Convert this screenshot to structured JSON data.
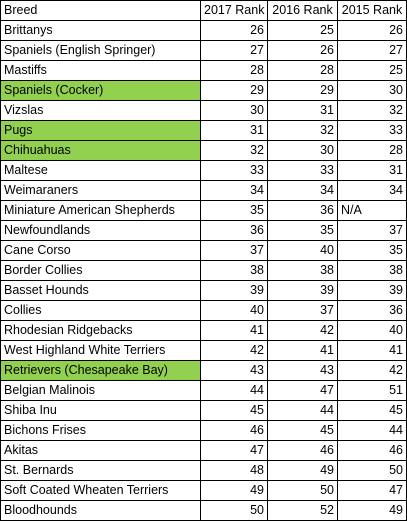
{
  "table": {
    "headers": [
      "Breed",
      "2017 Rank",
      "2016 Rank",
      "2015 Rank"
    ],
    "highlight_color": "#92d050",
    "rows": [
      {
        "breed": "Brittanys",
        "r2017": "26",
        "r2016": "25",
        "r2015": "26",
        "highlight": false
      },
      {
        "breed": "Spaniels (English Springer)",
        "r2017": "27",
        "r2016": "26",
        "r2015": "27",
        "highlight": false
      },
      {
        "breed": "Mastiffs",
        "r2017": "28",
        "r2016": "28",
        "r2015": "25",
        "highlight": false
      },
      {
        "breed": "Spaniels (Cocker)",
        "r2017": "29",
        "r2016": "29",
        "r2015": "30",
        "highlight": true
      },
      {
        "breed": "Vizslas",
        "r2017": "30",
        "r2016": "31",
        "r2015": "32",
        "highlight": false
      },
      {
        "breed": "Pugs",
        "r2017": "31",
        "r2016": "32",
        "r2015": "33",
        "highlight": true
      },
      {
        "breed": "Chihuahuas",
        "r2017": "32",
        "r2016": "30",
        "r2015": "28",
        "highlight": true
      },
      {
        "breed": "Maltese",
        "r2017": "33",
        "r2016": "33",
        "r2015": "31",
        "highlight": false
      },
      {
        "breed": "Weimaraners",
        "r2017": "34",
        "r2016": "34",
        "r2015": "34",
        "highlight": false
      },
      {
        "breed": "Miniature American Shepherds",
        "r2017": "35",
        "r2016": "36",
        "r2015": "N/A",
        "highlight": false
      },
      {
        "breed": "Newfoundlands",
        "r2017": "36",
        "r2016": "35",
        "r2015": "37",
        "highlight": false
      },
      {
        "breed": "Cane Corso",
        "r2017": "37",
        "r2016": "40",
        "r2015": "35",
        "highlight": false
      },
      {
        "breed": "Border Collies",
        "r2017": "38",
        "r2016": "38",
        "r2015": "38",
        "highlight": false
      },
      {
        "breed": "Basset Hounds",
        "r2017": "39",
        "r2016": "39",
        "r2015": "39",
        "highlight": false
      },
      {
        "breed": "Collies",
        "r2017": "40",
        "r2016": "37",
        "r2015": "36",
        "highlight": false
      },
      {
        "breed": "Rhodesian Ridgebacks",
        "r2017": "41",
        "r2016": "42",
        "r2015": "40",
        "highlight": false
      },
      {
        "breed": "West Highland White Terriers",
        "r2017": "42",
        "r2016": "41",
        "r2015": "41",
        "highlight": false
      },
      {
        "breed": "Retrievers (Chesapeake Bay)",
        "r2017": "43",
        "r2016": "43",
        "r2015": "42",
        "highlight": true
      },
      {
        "breed": "Belgian Malinois",
        "r2017": "44",
        "r2016": "47",
        "r2015": "51",
        "highlight": false
      },
      {
        "breed": "Shiba Inu",
        "r2017": "45",
        "r2016": "44",
        "r2015": "45",
        "highlight": false
      },
      {
        "breed": "Bichons Frises",
        "r2017": "46",
        "r2016": "45",
        "r2015": "44",
        "highlight": false
      },
      {
        "breed": "Akitas",
        "r2017": "47",
        "r2016": "46",
        "r2015": "46",
        "highlight": false
      },
      {
        "breed": "St. Bernards",
        "r2017": "48",
        "r2016": "49",
        "r2015": "50",
        "highlight": false
      },
      {
        "breed": "Soft Coated Wheaten Terriers",
        "r2017": "49",
        "r2016": "50",
        "r2015": "47",
        "highlight": false
      },
      {
        "breed": "Bloodhounds",
        "r2017": "50",
        "r2016": "52",
        "r2015": "49",
        "highlight": false
      }
    ]
  }
}
